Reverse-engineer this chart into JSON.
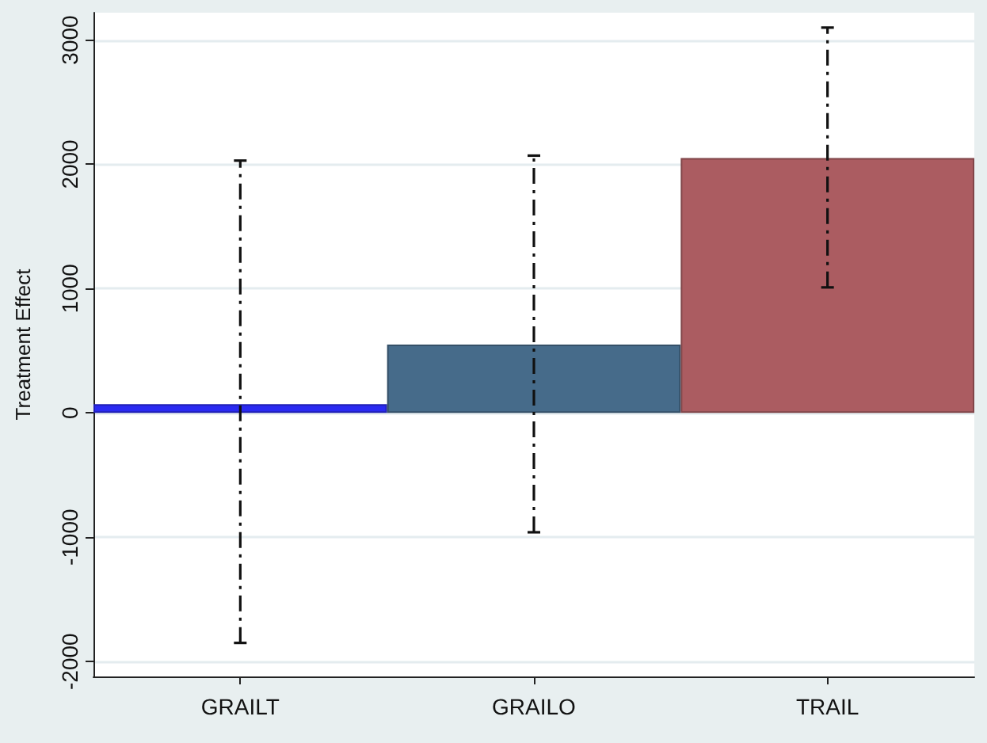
{
  "chart_data": {
    "type": "bar",
    "ylabel": "Treatment Effect",
    "categories": [
      "GRAILT",
      "GRAILO",
      "TRAIL"
    ],
    "values": [
      70,
      550,
      2050
    ],
    "colors": [
      "#2a2af2",
      "#466b8a",
      "#ab5c61"
    ],
    "errors": [
      [
        -1850,
        2030
      ],
      [
        -960,
        2070
      ],
      [
        1010,
        3100
      ]
    ],
    "ylim": [
      -2120,
      3220
    ],
    "yticks": [
      -2000,
      -1000,
      0,
      1000,
      2000,
      3000
    ],
    "grid": "y"
  }
}
